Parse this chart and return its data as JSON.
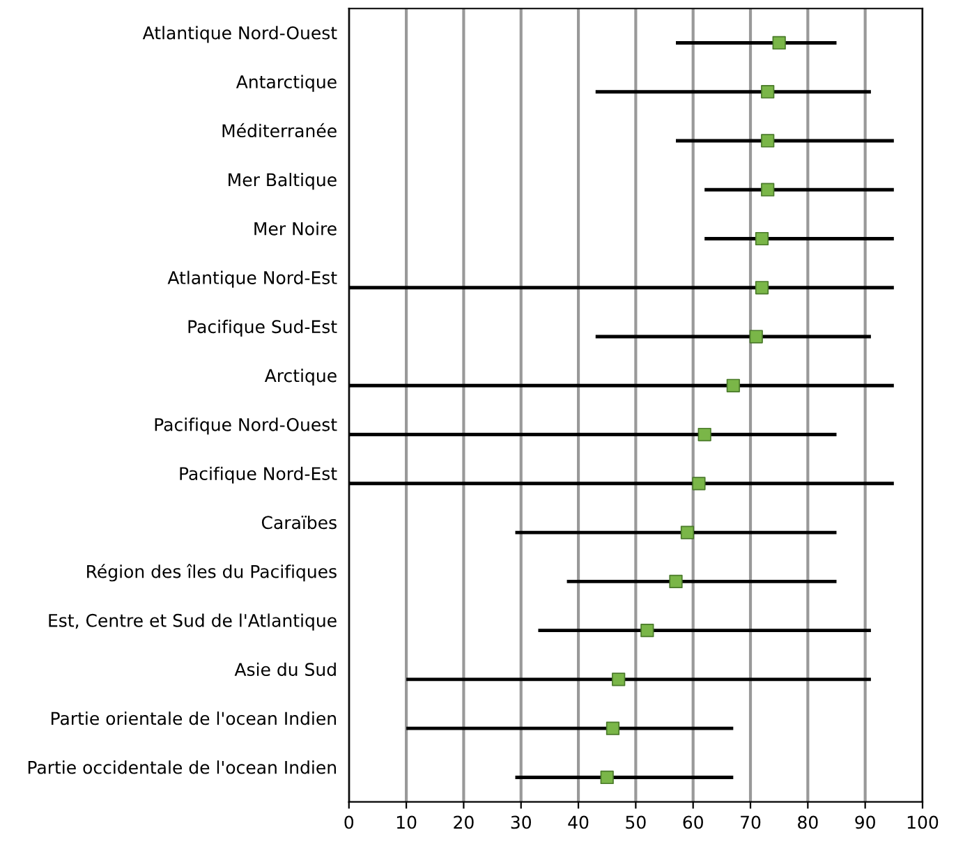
{
  "chart_data": {
    "type": "bar",
    "orientation": "horizontal",
    "categories": [
      "Atlantique Nord-Ouest",
      "Antarctique",
      "Méditerranée",
      "Mer Baltique",
      "Mer Noire",
      "Atlantique Nord-Est",
      "Pacifique Sud-Est",
      "Arctique",
      "Pacifique Nord-Ouest",
      "Pacifique Nord-Est",
      "Caraïbes",
      "Région des îles du Pacifiques",
      "Est, Centre et Sud de l'Atlantique",
      "Asie du Sud",
      "Partie orientale de l'ocean Indien",
      "Partie occidentale de l'ocean Indien"
    ],
    "series": [
      {
        "color": "#000000",
        "base": [
          57,
          43,
          57,
          62,
          62,
          0,
          43,
          0,
          0,
          0,
          29,
          38,
          33,
          10,
          10,
          29
        ],
        "values": [
          28,
          48,
          38,
          33,
          33,
          95,
          48,
          95,
          85,
          95,
          56,
          47,
          58,
          81,
          57,
          38
        ]
      },
      {
        "type": "scatter",
        "color": "#7ab648",
        "marker": "square",
        "values": [
          75,
          73,
          73,
          73,
          72,
          72,
          71,
          67,
          62,
          61,
          59,
          57,
          52,
          47,
          46,
          45
        ]
      }
    ],
    "xlim": [
      0,
      100
    ],
    "xticks": [
      0,
      10,
      20,
      30,
      40,
      50,
      60,
      70,
      80,
      90,
      100
    ],
    "grid": "x",
    "legend": false
  }
}
